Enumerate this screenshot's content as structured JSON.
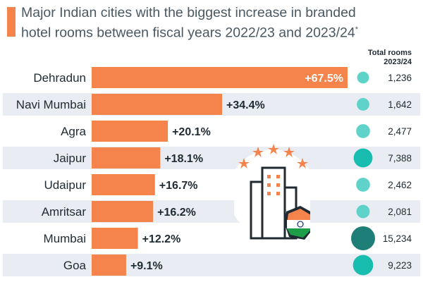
{
  "title": {
    "line1": "Major Indian cities with the biggest increase in branded",
    "line2": "hotel rooms between fiscal years 2022/23 and 2023/24",
    "mark": "*"
  },
  "columns": {
    "total_rooms_l1": "Total rooms",
    "total_rooms_l2": "2023/24"
  },
  "colors": {
    "accent": "#f5834c",
    "bar": "#f5834c",
    "band": "#e9edf3",
    "dot_light": "#5fd3c9",
    "dot_mid": "#18bdb0",
    "dot_dark": "#1e7f78"
  },
  "chart_data": {
    "type": "bar",
    "orientation": "horizontal",
    "title": "Major Indian cities with the biggest increase in branded hotel rooms between fiscal years 2022/23 and 2023/24*",
    "categories": [
      "Dehradun",
      "Navi Mumbai",
      "Agra",
      "Jaipur",
      "Udaipur",
      "Amritsar",
      "Mumbai",
      "Goa"
    ],
    "values": [
      67.5,
      34.4,
      20.1,
      18.1,
      16.7,
      16.2,
      12.2,
      9.1
    ],
    "value_labels": [
      "+67.5%",
      "+34.4%",
      "+20.1%",
      "+18.1%",
      "+16.7%",
      "+16.2%",
      "+12.2%",
      "+9.1%"
    ],
    "unit": "% increase",
    "xlim": [
      0,
      67.5
    ],
    "total_rooms": [
      1236,
      1642,
      2477,
      7388,
      2462,
      2081,
      15234,
      9223
    ],
    "total_rooms_labels": [
      "1,236",
      "1,642",
      "2,477",
      "7,388",
      "2,462",
      "2,081",
      "15,234",
      "9,223"
    ]
  },
  "illustration": {
    "icon": "hotel-building-with-stars-and-india-flag"
  }
}
